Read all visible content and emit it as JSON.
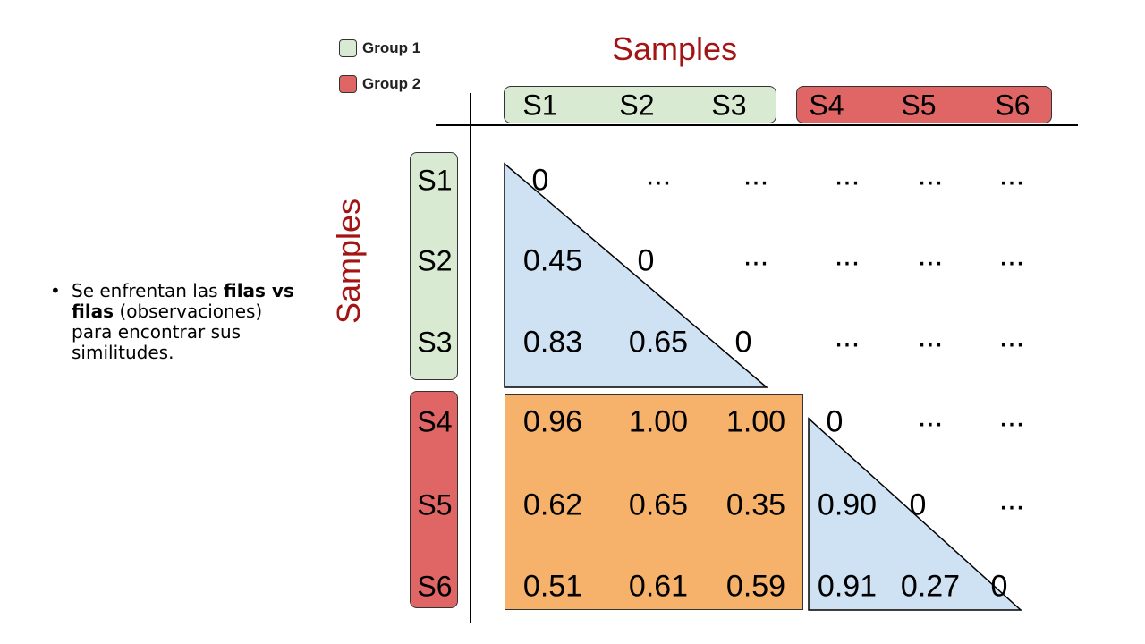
{
  "bullet": {
    "text_before": "Se enfrentan las ",
    "bold": "filas vs filas",
    "text_after": " (observaciones) para encontrar sus similitudes."
  },
  "legend": [
    {
      "label": "Group 1",
      "color": "#d9ead3"
    },
    {
      "label": "Group 2",
      "color": "#e06666"
    }
  ],
  "axis_titles": {
    "top": "Samples",
    "left": "Samples"
  },
  "column_headers": [
    "S1",
    "S2",
    "S3",
    "S4",
    "S5",
    "S6"
  ],
  "row_headers": [
    "S1",
    "S2",
    "S3",
    "S4",
    "S5",
    "S6"
  ],
  "matrix": [
    [
      "0",
      "...",
      "...",
      "...",
      "...",
      "..."
    ],
    [
      "0.45",
      "0",
      "...",
      "...",
      "...",
      "..."
    ],
    [
      "0.83",
      "0.65",
      "0",
      "...",
      "...",
      "..."
    ],
    [
      "0.96",
      "1.00",
      "1.00",
      "0",
      "...",
      "..."
    ],
    [
      "0.62",
      "0.65",
      "0.35",
      "0.90",
      "0",
      "..."
    ],
    [
      "0.51",
      "0.61",
      "0.59",
      "0.91",
      "0.27",
      "0"
    ]
  ],
  "colors": {
    "group1": "#d9ead3",
    "group2": "#e06666",
    "between_groups": "#f6b26b",
    "within_group": "#cfe2f3",
    "axis_title": "#a31515"
  }
}
